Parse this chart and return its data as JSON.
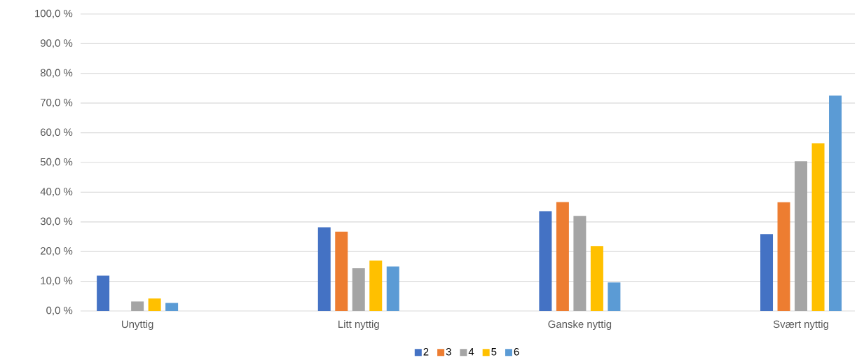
{
  "chart_data": {
    "type": "bar",
    "categories": [
      "Unyttig",
      "Litt nyttig",
      "Ganske nyttig",
      "Svært nyttig"
    ],
    "series": [
      {
        "name": "2",
        "color": "#4472c4",
        "values": [
          11.9,
          28.2,
          33.6,
          25.9
        ]
      },
      {
        "name": "3",
        "color": "#ed7d31",
        "values": [
          0,
          26.7,
          36.7,
          36.6
        ]
      },
      {
        "name": "4",
        "color": "#a5a5a5",
        "values": [
          3.2,
          14.4,
          32.0,
          50.4
        ]
      },
      {
        "name": "5",
        "color": "#ffc000",
        "values": [
          4.2,
          17.0,
          21.9,
          56.5
        ]
      },
      {
        "name": "6",
        "color": "#5b9bd5",
        "values": [
          2.7,
          15.0,
          9.6,
          72.5
        ]
      }
    ],
    "ylim": [
      0,
      100
    ],
    "yticks": [
      {
        "value": 0,
        "label": "0,0 %"
      },
      {
        "value": 10,
        "label": "10,0 %"
      },
      {
        "value": 20,
        "label": "20,0 %"
      },
      {
        "value": 30,
        "label": "30,0 %"
      },
      {
        "value": 40,
        "label": "40,0 %"
      },
      {
        "value": 50,
        "label": "50,0 %"
      },
      {
        "value": 60,
        "label": "60,0 %"
      },
      {
        "value": 70,
        "label": "70,0 %"
      },
      {
        "value": 80,
        "label": "80,0 %"
      },
      {
        "value": 90,
        "label": "90,0 %"
      },
      {
        "value": 100,
        "label": "100,0 %"
      }
    ],
    "grid": "y",
    "legend": "bottom"
  }
}
